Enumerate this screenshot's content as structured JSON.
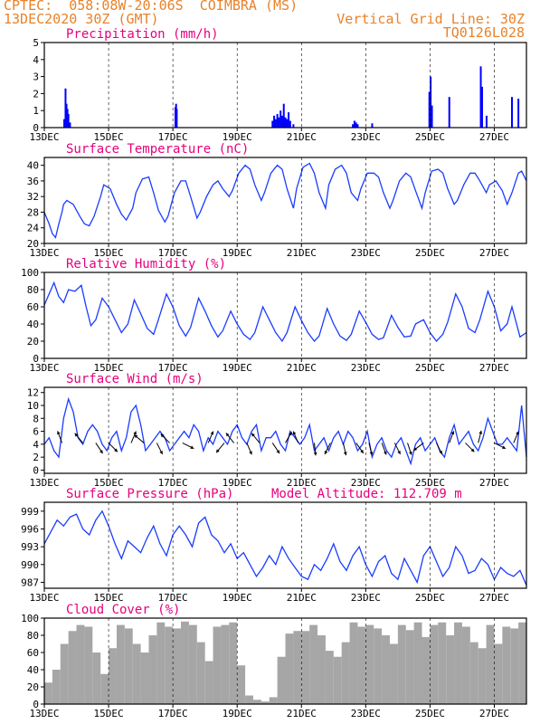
{
  "header": {
    "line1": "CPTEC:  058:08W-20:06S  COIMBRA (MS)",
    "line2": "13DEC2020 30Z (GMT)",
    "grid_label": "Vertical Grid Line: 30Z",
    "code": "TQ0126L028"
  },
  "colors": {
    "header": "#e8822a",
    "title": "#e6007e",
    "bars": "#0000ff",
    "line": "#1a3cff",
    "cloud": "#a6a6a6"
  },
  "chart_data": [
    {
      "type": "bar",
      "title": "Precipitation (mm/h)",
      "ylim": [
        0,
        5
      ],
      "yticks": [
        0,
        1,
        2,
        3,
        4,
        5
      ],
      "xlim": [
        0,
        15
      ],
      "xticks": [
        0,
        2,
        4,
        6,
        8,
        10,
        12,
        14
      ],
      "xticklabels": [
        "13DEC",
        "15DEC",
        "17DEC",
        "19DEC",
        "21DEC",
        "23DEC",
        "25DEC",
        "27DEC"
      ],
      "x": [
        0.62,
        0.66,
        0.69,
        0.72,
        0.75,
        0.8,
        4.08,
        4.1,
        4.12,
        7.1,
        7.15,
        7.2,
        7.25,
        7.3,
        7.35,
        7.4,
        7.45,
        7.5,
        7.55,
        7.6,
        7.65,
        7.75,
        9.6,
        9.65,
        9.7,
        9.75,
        10.2,
        11.98,
        12.02,
        12.06,
        12.6,
        13.58,
        13.62,
        13.76,
        14.55,
        14.75
      ],
      "values": [
        0.5,
        2.3,
        1.4,
        1.1,
        0.8,
        0.3,
        1.2,
        1.4,
        1.1,
        0.4,
        0.7,
        0.5,
        0.8,
        0.6,
        1.0,
        0.7,
        1.4,
        0.6,
        0.5,
        0.9,
        0.4,
        0.2,
        0.2,
        0.4,
        0.3,
        0.2,
        0.25,
        2.1,
        3.0,
        1.3,
        1.8,
        3.6,
        2.4,
        0.7,
        1.8,
        1.7
      ]
    },
    {
      "type": "line",
      "title": "Surface Temperature (nC)",
      "ylim": [
        20,
        42
      ],
      "yticks": [
        20,
        24,
        28,
        32,
        36,
        40
      ],
      "xlim": [
        0,
        15
      ],
      "xticks": [
        0,
        2,
        4,
        6,
        8,
        10,
        12,
        14
      ],
      "xticklabels": [
        "13DEC",
        "15DEC",
        "17DEC",
        "19DEC",
        "21DEC",
        "23DEC",
        "25DEC",
        "27DEC"
      ],
      "x": [
        0,
        0.15,
        0.25,
        0.35,
        0.45,
        0.55,
        0.6,
        0.7,
        0.9,
        1.1,
        1.25,
        1.4,
        1.55,
        1.75,
        1.85,
        2.05,
        2.25,
        2.4,
        2.55,
        2.75,
        2.85,
        3.05,
        3.25,
        3.4,
        3.55,
        3.75,
        3.85,
        4.05,
        4.25,
        4.4,
        4.55,
        4.75,
        4.85,
        5.05,
        5.25,
        5.4,
        5.55,
        5.75,
        5.85,
        6.05,
        6.25,
        6.4,
        6.55,
        6.75,
        6.85,
        7.05,
        7.25,
        7.4,
        7.55,
        7.75,
        7.85,
        8.05,
        8.25,
        8.4,
        8.55,
        8.75,
        8.85,
        9.05,
        9.25,
        9.4,
        9.55,
        9.75,
        9.85,
        10.05,
        10.25,
        10.4,
        10.55,
        10.75,
        10.85,
        11.05,
        11.25,
        11.4,
        11.55,
        11.75,
        11.85,
        12.05,
        12.25,
        12.4,
        12.55,
        12.75,
        12.85,
        13.05,
        13.25,
        13.4,
        13.55,
        13.75,
        13.85,
        14.05,
        14.25,
        14.4,
        14.55,
        14.75,
        14.85,
        15
      ],
      "values": [
        28,
        25,
        22.5,
        21.5,
        25,
        28,
        30,
        31,
        30,
        27,
        25,
        24.5,
        27,
        32,
        35,
        34,
        30,
        27.5,
        26,
        29,
        33,
        36.5,
        37,
        33,
        28.5,
        25.5,
        27,
        33,
        36,
        36,
        32,
        26.5,
        28,
        32,
        35,
        36,
        34,
        32,
        33.5,
        38,
        40,
        39,
        35,
        31,
        33,
        38,
        40,
        39,
        34,
        29,
        34,
        39.5,
        40.5,
        38,
        33,
        29,
        35,
        39,
        40,
        38,
        33,
        31,
        34,
        38,
        38,
        37,
        33,
        29,
        31,
        36,
        38,
        37,
        33.5,
        29,
        33,
        38.5,
        39,
        38,
        34,
        30,
        31,
        35,
        38,
        38,
        36,
        33,
        35,
        36,
        33.5,
        30,
        33,
        38,
        38.5,
        36
      ]
    },
    {
      "type": "line",
      "title": "Relative Humidity (%)",
      "ylim": [
        0,
        100
      ],
      "yticks": [
        0,
        20,
        40,
        60,
        80,
        100
      ],
      "xlim": [
        0,
        15
      ],
      "xticks": [
        0,
        2,
        4,
        6,
        8,
        10,
        12,
        14
      ],
      "xticklabels": [
        "13DEC",
        "15DEC",
        "17DEC",
        "19DEC",
        "21DEC",
        "23DEC",
        "25DEC",
        "27DEC"
      ],
      "x": [
        0,
        0.15,
        0.3,
        0.45,
        0.6,
        0.75,
        0.95,
        1.15,
        1.3,
        1.45,
        1.6,
        1.8,
        2.0,
        2.2,
        2.4,
        2.6,
        2.8,
        3.0,
        3.2,
        3.4,
        3.55,
        3.8,
        4.0,
        4.2,
        4.4,
        4.55,
        4.8,
        5.0,
        5.2,
        5.4,
        5.55,
        5.8,
        6.0,
        6.2,
        6.4,
        6.55,
        6.8,
        7.0,
        7.2,
        7.4,
        7.55,
        7.8,
        8.0,
        8.2,
        8.4,
        8.55,
        8.8,
        9.0,
        9.2,
        9.4,
        9.55,
        9.8,
        10.0,
        10.2,
        10.4,
        10.55,
        10.8,
        11.0,
        11.2,
        11.4,
        11.55,
        11.8,
        12.0,
        12.2,
        12.4,
        12.55,
        12.8,
        13.0,
        13.2,
        13.4,
        13.55,
        13.8,
        14.0,
        14.2,
        14.4,
        14.55,
        14.8,
        15
      ],
      "values": [
        62,
        75,
        88,
        72,
        65,
        80,
        78,
        85,
        60,
        38,
        45,
        70,
        60,
        45,
        30,
        40,
        68,
        52,
        35,
        28,
        45,
        75,
        60,
        38,
        26,
        36,
        70,
        55,
        38,
        25,
        32,
        55,
        40,
        28,
        22,
        30,
        60,
        45,
        30,
        20,
        30,
        60,
        44,
        30,
        20,
        26,
        58,
        40,
        26,
        21,
        28,
        55,
        42,
        28,
        22,
        24,
        50,
        36,
        25,
        26,
        40,
        45,
        30,
        20,
        28,
        42,
        75,
        60,
        35,
        30,
        45,
        78,
        60,
        32,
        40,
        60,
        25,
        30
      ]
    },
    {
      "type": "line",
      "title": "Surface Wind (m/s)",
      "ylim": [
        -0.5,
        12.8
      ],
      "yticks": [
        0,
        2,
        4,
        6,
        8,
        10,
        12
      ],
      "xlim": [
        0,
        15
      ],
      "xticks": [
        0,
        2,
        4,
        6,
        8,
        10,
        12,
        14
      ],
      "xticklabels": [
        "13DEC",
        "15DEC",
        "17DEC",
        "19DEC",
        "21DEC",
        "23DEC",
        "25DEC",
        "27DEC"
      ],
      "x": [
        0,
        0.15,
        0.3,
        0.45,
        0.6,
        0.75,
        0.9,
        1.05,
        1.2,
        1.35,
        1.5,
        1.65,
        1.8,
        1.95,
        2.1,
        2.25,
        2.4,
        2.55,
        2.7,
        2.85,
        3.0,
        3.15,
        3.3,
        3.45,
        3.6,
        3.75,
        3.9,
        4.05,
        4.2,
        4.35,
        4.5,
        4.65,
        4.8,
        4.95,
        5.1,
        5.25,
        5.4,
        5.55,
        5.7,
        5.85,
        6.0,
        6.15,
        6.3,
        6.45,
        6.6,
        6.75,
        6.9,
        7.05,
        7.2,
        7.35,
        7.5,
        7.65,
        7.8,
        7.95,
        8.1,
        8.25,
        8.4,
        8.55,
        8.7,
        8.85,
        9.0,
        9.15,
        9.3,
        9.45,
        9.6,
        9.75,
        9.9,
        10.05,
        10.2,
        10.35,
        10.5,
        10.65,
        10.8,
        10.95,
        11.1,
        11.25,
        11.4,
        11.55,
        11.7,
        11.85,
        12.0,
        12.15,
        12.3,
        12.45,
        12.6,
        12.75,
        12.9,
        13.05,
        13.2,
        13.35,
        13.5,
        13.65,
        13.8,
        13.95,
        14.1,
        14.25,
        14.4,
        14.55,
        14.7,
        14.85,
        15
      ],
      "values": [
        4,
        5,
        3,
        2,
        8,
        11,
        9,
        5,
        4,
        6,
        7,
        6,
        4,
        3,
        5,
        6,
        3,
        5,
        9,
        10,
        7,
        3,
        4,
        5,
        6,
        5,
        3,
        4,
        5,
        6,
        5,
        7,
        6,
        3,
        5,
        4,
        6,
        5,
        4,
        6,
        7,
        5,
        4,
        6,
        7,
        3,
        5,
        5,
        6,
        4,
        3,
        6,
        5,
        4,
        5,
        7,
        3,
        4,
        5,
        3,
        5,
        6,
        4,
        6,
        5,
        3,
        4,
        6,
        2,
        4,
        5,
        3,
        2,
        4,
        5,
        3,
        1,
        4,
        5,
        3,
        4,
        5,
        3,
        2,
        5,
        7,
        4,
        5,
        6,
        4,
        3,
        5,
        8,
        6,
        4,
        4,
        5,
        4,
        3,
        10,
        2
      ],
      "barbs_x": [
        0.55,
        1.2,
        1.6,
        2.0,
        2.7,
        3.1,
        3.5,
        3.9,
        4.3,
        5.1,
        5.6,
        5.9,
        6.3,
        6.7,
        7.1,
        7.5,
        7.9,
        8.4,
        8.9,
        9.3,
        9.7,
        10.1,
        10.5,
        10.9,
        11.3,
        11.8,
        12.2,
        12.6,
        13.1,
        13.5,
        14.0,
        14.6
      ],
      "barbs_u": [
        -0.3,
        -0.5,
        0.4,
        0.5,
        0.3,
        -0.6,
        0.3,
        -0.5,
        0.6,
        0.3,
        -0.5,
        -0.4,
        0.3,
        -0.5,
        0.4,
        0.4,
        -0.3,
        0.1,
        -0.4,
        0.2,
        0.5,
        0.2,
        0.3,
        0.3,
        0.2,
        -0.4,
        0.3,
        0.3,
        0.5,
        0.2,
        0.6,
        0.3
      ],
      "barbs_v": [
        0.8,
        0.6,
        -0.6,
        -0.5,
        0.7,
        0.5,
        -0.6,
        0.5,
        -0.3,
        0.7,
        -0.6,
        0.5,
        -0.7,
        0.6,
        -0.6,
        0.7,
        0.7,
        -0.9,
        -0.8,
        -0.9,
        -0.7,
        -0.8,
        -0.8,
        -0.6,
        -0.6,
        -0.3,
        -0.6,
        0.8,
        -0.5,
        0.8,
        -0.3,
        0.7
      ]
    },
    {
      "type": "line",
      "title": "Surface Pressure (hPa)",
      "subtitle": "Model Altitude: 112.709  m",
      "ylim": [
        986,
        1000.5
      ],
      "yticks": [
        987,
        990,
        993,
        996,
        999
      ],
      "xlim": [
        0,
        15
      ],
      "xticks": [
        0,
        2,
        4,
        6,
        8,
        10,
        12,
        14
      ],
      "xticklabels": [
        "13DEC",
        "15DEC",
        "17DEC",
        "19DEC",
        "21DEC",
        "23DEC",
        "25DEC",
        "27DEC"
      ],
      "x": [
        0,
        0.2,
        0.4,
        0.6,
        0.8,
        1.0,
        1.2,
        1.4,
        1.6,
        1.8,
        2.0,
        2.2,
        2.4,
        2.6,
        2.8,
        3.0,
        3.2,
        3.4,
        3.6,
        3.8,
        4.0,
        4.2,
        4.4,
        4.6,
        4.8,
        5.0,
        5.2,
        5.4,
        5.6,
        5.8,
        6.0,
        6.2,
        6.4,
        6.6,
        6.8,
        7.0,
        7.2,
        7.4,
        7.6,
        7.8,
        8.0,
        8.2,
        8.4,
        8.6,
        8.8,
        9.0,
        9.2,
        9.4,
        9.6,
        9.8,
        10.0,
        10.2,
        10.4,
        10.6,
        10.8,
        11.0,
        11.2,
        11.4,
        11.6,
        11.8,
        12.0,
        12.2,
        12.4,
        12.6,
        12.8,
        13.0,
        13.2,
        13.4,
        13.6,
        13.8,
        14.0,
        14.2,
        14.4,
        14.6,
        14.8,
        15
      ],
      "values": [
        993.5,
        995.5,
        997.5,
        996.5,
        998,
        998.5,
        996,
        995,
        997.5,
        999,
        996.5,
        993.5,
        991,
        994,
        993,
        992,
        994.5,
        996.5,
        993.5,
        991.5,
        995,
        996.5,
        995,
        993,
        997,
        998,
        995,
        994,
        992,
        993.5,
        991,
        992,
        990,
        988,
        989.5,
        991.5,
        990,
        993,
        991,
        989.5,
        988,
        987.5,
        990,
        989,
        991,
        993.5,
        990.5,
        989,
        991.5,
        993,
        990,
        988,
        990.5,
        991.5,
        988.5,
        987.5,
        991,
        989,
        987,
        991.5,
        993,
        990.5,
        988,
        989.5,
        993,
        991.5,
        988.5,
        989,
        991,
        990,
        987.5,
        989.5,
        988.5,
        988,
        989,
        986.5
      ]
    },
    {
      "type": "area",
      "title": "Cloud Cover (%)",
      "ylim": [
        0,
        100
      ],
      "yticks": [
        0,
        20,
        40,
        60,
        80,
        100
      ],
      "xlim": [
        0,
        15
      ],
      "xticks": [
        0,
        2,
        4,
        6,
        8,
        10,
        12,
        14
      ],
      "xticklabels": [
        "13DEC",
        "15DEC",
        "17DEC",
        "19DEC",
        "21DEC",
        "23DEC",
        "25DEC",
        "27DEC"
      ],
      "x": [
        0,
        0.25,
        0.5,
        0.75,
        1.0,
        1.25,
        1.5,
        1.75,
        2.0,
        2.25,
        2.5,
        2.75,
        3.0,
        3.25,
        3.5,
        3.75,
        4.0,
        4.25,
        4.5,
        4.75,
        5.0,
        5.25,
        5.5,
        5.75,
        6.0,
        6.25,
        6.5,
        6.75,
        7.0,
        7.25,
        7.5,
        7.75,
        8.0,
        8.25,
        8.5,
        8.75,
        9.0,
        9.25,
        9.5,
        9.75,
        10.0,
        10.25,
        10.5,
        10.75,
        11.0,
        11.25,
        11.5,
        11.75,
        12.0,
        12.25,
        12.5,
        12.75,
        13.0,
        13.25,
        13.5,
        13.75,
        14.0,
        14.25,
        14.5,
        14.75,
        15
      ],
      "values": [
        25,
        40,
        70,
        85,
        92,
        90,
        60,
        35,
        65,
        92,
        88,
        70,
        60,
        80,
        95,
        90,
        88,
        96,
        92,
        72,
        50,
        90,
        92,
        95,
        45,
        10,
        5,
        3,
        8,
        55,
        82,
        85,
        85,
        92,
        80,
        62,
        55,
        72,
        95,
        90,
        92,
        88,
        80,
        70,
        92,
        86,
        95,
        78,
        92,
        95,
        80,
        95,
        90,
        72,
        65,
        92,
        70,
        90,
        88,
        95,
        93
      ]
    }
  ]
}
